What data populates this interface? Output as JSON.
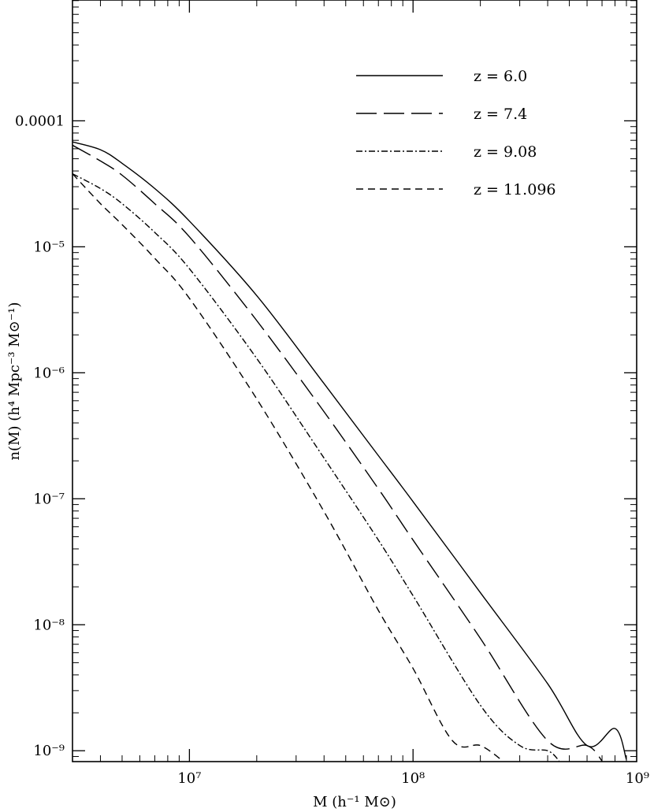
{
  "chart_data": {
    "type": "line",
    "title": "",
    "xlabel": "M (h⁻¹ M⊙)",
    "ylabel": "n(M) (h⁴ Mpc⁻³ M⊙⁻¹)",
    "x_scale": "log",
    "y_scale": "log",
    "xlim": [
      3000000,
      1000000000
    ],
    "ylim": [
      8.2e-10,
      0.00091
    ],
    "grid": false,
    "legend_position": "top-right",
    "x_ticks": [
      {
        "value": 10000000,
        "label": "10⁷"
      },
      {
        "value": 100000000,
        "label": "10⁸"
      },
      {
        "value": 1000000000,
        "label": "10⁹"
      }
    ],
    "y_ticks": [
      {
        "value": 0.0001,
        "label": "0.0001"
      },
      {
        "value": 1e-05,
        "label": "10⁻⁵"
      },
      {
        "value": 1e-06,
        "label": "10⁻⁶"
      },
      {
        "value": 1e-07,
        "label": "10⁻⁷"
      },
      {
        "value": 1e-08,
        "label": "10⁻⁸"
      },
      {
        "value": 1e-09,
        "label": "10⁻⁹"
      }
    ],
    "series": [
      {
        "name": "z = 6.0",
        "style": "solid",
        "x": [
          3000000,
          4000000,
          5000000,
          7000000,
          10000000,
          20000000,
          40000000,
          70000000,
          100000000,
          200000000,
          400000000,
          600000000,
          800000000,
          900000000
        ],
        "y": [
          6.8e-05,
          5.9e-05,
          4.6e-05,
          2.9e-05,
          1.6e-05,
          4.1e-06,
          8.2e-07,
          2.2e-07,
          9.5e-08,
          1.8e-08,
          3.4e-09,
          1.1e-09,
          1.5e-09,
          8.5e-10
        ]
      },
      {
        "name": "z = 7.4",
        "style": "long-dash",
        "x": [
          3000000,
          4000000,
          5000000,
          7000000,
          10000000,
          20000000,
          40000000,
          70000000,
          100000000,
          200000000,
          400000000,
          600000000,
          700000000
        ],
        "y": [
          6.4e-05,
          4.8e-05,
          3.7e-05,
          2.2e-05,
          1.2e-05,
          2.6e-06,
          4.9e-07,
          1.2e-07,
          4.7e-08,
          7.8e-09,
          1.2e-09,
          1.1e-09,
          8.3e-10
        ]
      },
      {
        "name": "z = 9.08",
        "style": "dash-dot",
        "x": [
          3000000,
          4000000,
          5000000,
          7000000,
          10000000,
          20000000,
          40000000,
          70000000,
          100000000,
          200000000,
          300000000,
          400000000,
          450000000
        ],
        "y": [
          3.8e-05,
          2.9e-05,
          2.2e-05,
          1.3e-05,
          6.7e-06,
          1.3e-06,
          2.1e-07,
          4.7e-08,
          1.7e-08,
          2.3e-09,
          1.1e-09,
          1e-09,
          8.3e-10
        ]
      },
      {
        "name": "z = 11.096",
        "style": "short-dash",
        "x": [
          3000000,
          4000000,
          5000000,
          7000000,
          10000000,
          20000000,
          40000000,
          70000000,
          100000000,
          150000000,
          200000000,
          250000000
        ],
        "y": [
          3.8e-05,
          2.2e-05,
          1.5e-05,
          8.1e-06,
          3.9e-06,
          6.2e-07,
          7.9e-08,
          1.3e-08,
          4.5e-09,
          1.2e-09,
          1.1e-09,
          8.4e-10
        ]
      }
    ]
  }
}
